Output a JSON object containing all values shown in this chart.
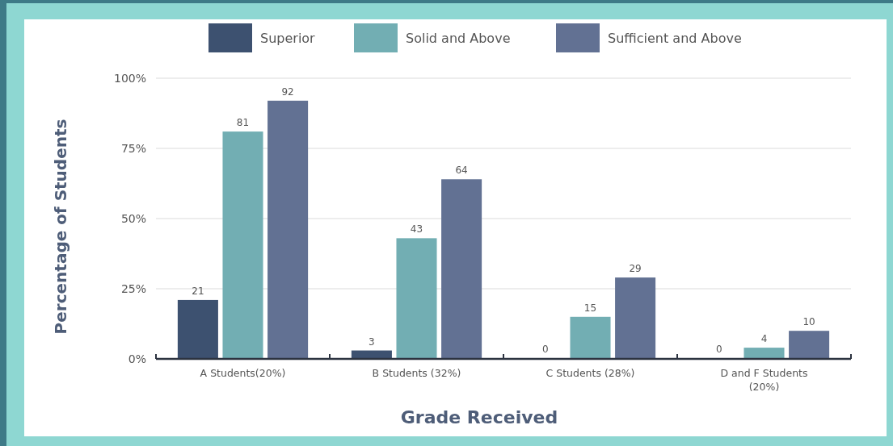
{
  "chart_data": {
    "type": "bar",
    "xlabel": "Grade Received",
    "ylabel": "Percentage of Students",
    "categories": [
      "A Students(20%)",
      "B Students (32%)",
      "C Students (28%)",
      "D and F Students (20%)"
    ],
    "series": [
      {
        "name": "Superior",
        "color": "#3d5170",
        "values": [
          21,
          3,
          0,
          0
        ]
      },
      {
        "name": "Solid and Above",
        "color": "#72aeb3",
        "values": [
          81,
          43,
          15,
          4
        ]
      },
      {
        "name": "Sufficient and Above",
        "color": "#627193",
        "values": [
          92,
          64,
          29,
          10
        ]
      }
    ],
    "ylim": [
      0,
      100
    ],
    "yticks": [
      {
        "value": 0,
        "label": "0%"
      },
      {
        "value": 25,
        "label": "25%"
      },
      {
        "value": 50,
        "label": "50%"
      },
      {
        "value": 75,
        "label": "75%"
      },
      {
        "value": 100,
        "label": "100%"
      }
    ],
    "grid": "y",
    "legend": "top",
    "data_labels": true
  }
}
